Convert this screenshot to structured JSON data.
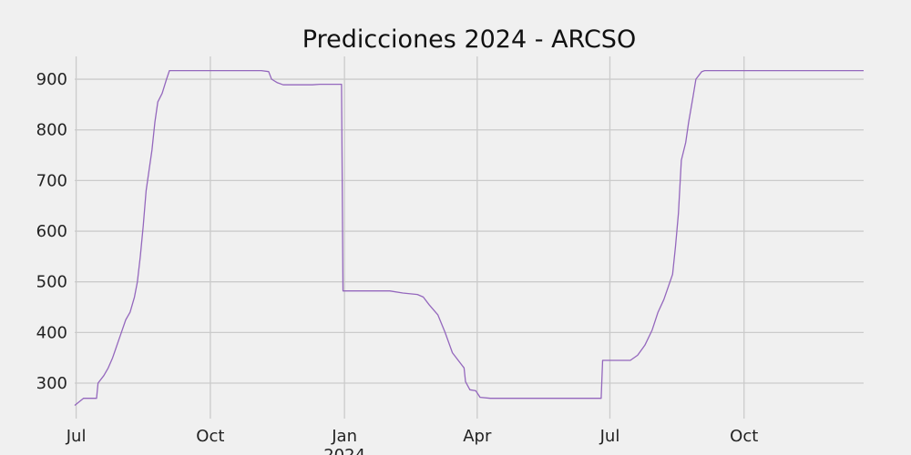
{
  "chart_data": {
    "type": "line",
    "title": "Predicciones 2024 - ARCSO",
    "xlabel": "",
    "ylabel": "",
    "ylim": [
      230,
      945
    ],
    "xlim": [
      "2023-06-30",
      "2024-12-22"
    ],
    "yticks": [
      300,
      400,
      500,
      600,
      700,
      800,
      900
    ],
    "xticks": [
      {
        "date": "2023-07-01",
        "label": "Jul"
      },
      {
        "date": "2023-10-01",
        "label": "Oct"
      },
      {
        "date": "2024-01-01",
        "label": "Jan",
        "sublabel": "2024"
      },
      {
        "date": "2024-04-01",
        "label": "Apr"
      },
      {
        "date": "2024-07-01",
        "label": "Jul"
      },
      {
        "date": "2024-10-01",
        "label": "Oct"
      }
    ],
    "grid": true,
    "colors": {
      "background": "#f0f0f0",
      "grid": "#cbcbcb",
      "series": "#9467bd"
    },
    "series": [
      {
        "color": "#9467bd",
        "points": [
          [
            "2023-06-30",
            256
          ],
          [
            "2023-07-03",
            263
          ],
          [
            "2023-07-06",
            270
          ],
          [
            "2023-07-10",
            270
          ],
          [
            "2023-07-15",
            270
          ],
          [
            "2023-07-16",
            300
          ],
          [
            "2023-07-20",
            315
          ],
          [
            "2023-07-23",
            330
          ],
          [
            "2023-07-26",
            350
          ],
          [
            "2023-07-29",
            375
          ],
          [
            "2023-08-01",
            400
          ],
          [
            "2023-08-04",
            425
          ],
          [
            "2023-08-07",
            440
          ],
          [
            "2023-08-10",
            470
          ],
          [
            "2023-08-12",
            500
          ],
          [
            "2023-08-14",
            550
          ],
          [
            "2023-08-16",
            610
          ],
          [
            "2023-08-18",
            680
          ],
          [
            "2023-08-20",
            720
          ],
          [
            "2023-08-22",
            760
          ],
          [
            "2023-08-24",
            815
          ],
          [
            "2023-08-26",
            855
          ],
          [
            "2023-08-29",
            872
          ],
          [
            "2023-09-01",
            900
          ],
          [
            "2023-09-03",
            917
          ],
          [
            "2023-09-10",
            917
          ],
          [
            "2023-10-01",
            917
          ],
          [
            "2023-11-05",
            917
          ],
          [
            "2023-11-10",
            915
          ],
          [
            "2023-11-12",
            900
          ],
          [
            "2023-11-16",
            893
          ],
          [
            "2023-11-20",
            889
          ],
          [
            "2023-12-10",
            889
          ],
          [
            "2023-12-15",
            890
          ],
          [
            "2023-12-30",
            890
          ],
          [
            "2023-12-31",
            482
          ],
          [
            "2024-02-01",
            482
          ],
          [
            "2024-02-10",
            478
          ],
          [
            "2024-02-20",
            475
          ],
          [
            "2024-02-24",
            470
          ],
          [
            "2024-02-28",
            455
          ],
          [
            "2024-03-05",
            435
          ],
          [
            "2024-03-10",
            400
          ],
          [
            "2024-03-15",
            360
          ],
          [
            "2024-03-19",
            345
          ],
          [
            "2024-03-23",
            330
          ],
          [
            "2024-03-24",
            303
          ],
          [
            "2024-03-27",
            287
          ],
          [
            "2024-03-31",
            285
          ],
          [
            "2024-04-03",
            272
          ],
          [
            "2024-04-10",
            270
          ],
          [
            "2024-06-25",
            270
          ],
          [
            "2024-06-26",
            345
          ],
          [
            "2024-07-01",
            345
          ],
          [
            "2024-07-15",
            345
          ],
          [
            "2024-07-20",
            355
          ],
          [
            "2024-07-25",
            375
          ],
          [
            "2024-07-30",
            405
          ],
          [
            "2024-08-03",
            440
          ],
          [
            "2024-08-07",
            465
          ],
          [
            "2024-08-10",
            490
          ],
          [
            "2024-08-13",
            515
          ],
          [
            "2024-08-15",
            570
          ],
          [
            "2024-08-17",
            635
          ],
          [
            "2024-08-19",
            740
          ],
          [
            "2024-08-22",
            775
          ],
          [
            "2024-08-24",
            815
          ],
          [
            "2024-08-27",
            865
          ],
          [
            "2024-08-29",
            900
          ],
          [
            "2024-09-02",
            915
          ],
          [
            "2024-09-04",
            917
          ],
          [
            "2024-10-01",
            917
          ],
          [
            "2024-12-22",
            917
          ]
        ]
      }
    ]
  }
}
